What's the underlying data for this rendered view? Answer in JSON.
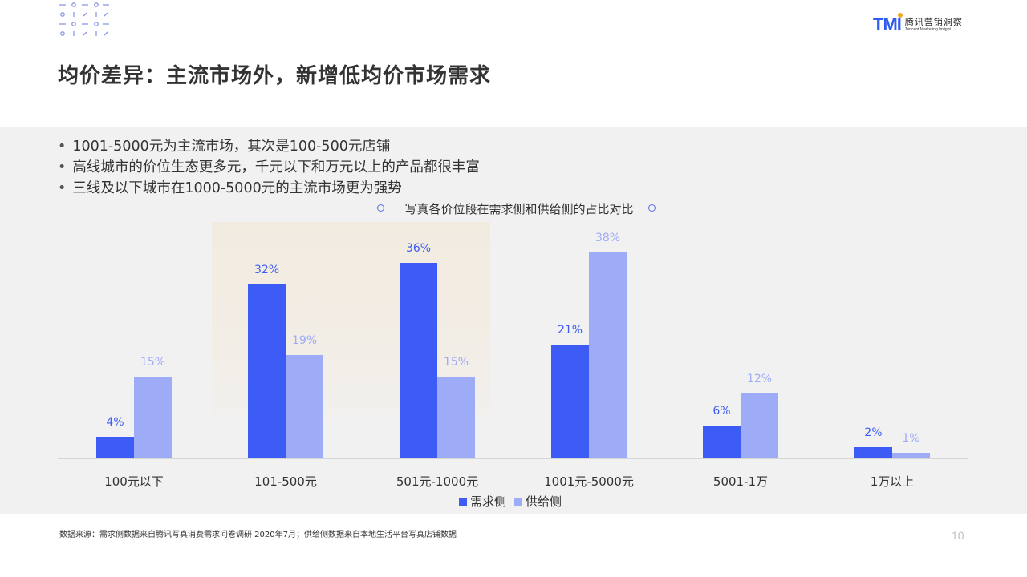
{
  "header": {
    "logo_mark": "TMI",
    "logo_cn": "腾讯营销洞察",
    "logo_en": "Tencent Marketing Insight",
    "title": "均价差异：主流市场外，新增低均价市场需求"
  },
  "bullets": [
    "1001-5000元为主流市场，其次是100-500元店铺",
    "高线城市的价位生态更多元，千元以下和万元以上的产品都很丰富",
    "三线及以下城市在1000-5000元的主流市场更为强势"
  ],
  "colors": {
    "demand": "#3d5cf5",
    "supply": "#9eabf7",
    "accent_line": "#5670e8",
    "highlight": "#f2ebe0",
    "panel": "#f1f1f1"
  },
  "chart_data": {
    "type": "bar",
    "title": "写真各价位段在需求侧和供给侧的占比对比",
    "categories": [
      "100元以下",
      "101-500元",
      "501元-1000元",
      "1001元-5000元",
      "5001-1万",
      "1万以上"
    ],
    "series": [
      {
        "name": "需求侧",
        "values": [
          4,
          32,
          36,
          21,
          6,
          2
        ],
        "labels": [
          "4%",
          "32%",
          "36%",
          "21%",
          "6%",
          "2%"
        ]
      },
      {
        "name": "供给侧",
        "values": [
          15,
          19,
          15,
          38,
          12,
          1
        ],
        "labels": [
          "15%",
          "19%",
          "15%",
          "38%",
          "12%",
          "1%"
        ]
      }
    ],
    "xlabel": "",
    "ylabel": "",
    "ylim": [
      0,
      40
    ],
    "grid": false,
    "legend_position": "bottom",
    "highlighted_categories": [
      "101-500元",
      "501元-1000元"
    ]
  },
  "footer": {
    "source": "数据来源：需求侧数据来自腾讯写真消费需求问卷调研  2020年7月；供给侧数据来自本地生活平台写真店铺数据",
    "page_number": "10"
  }
}
